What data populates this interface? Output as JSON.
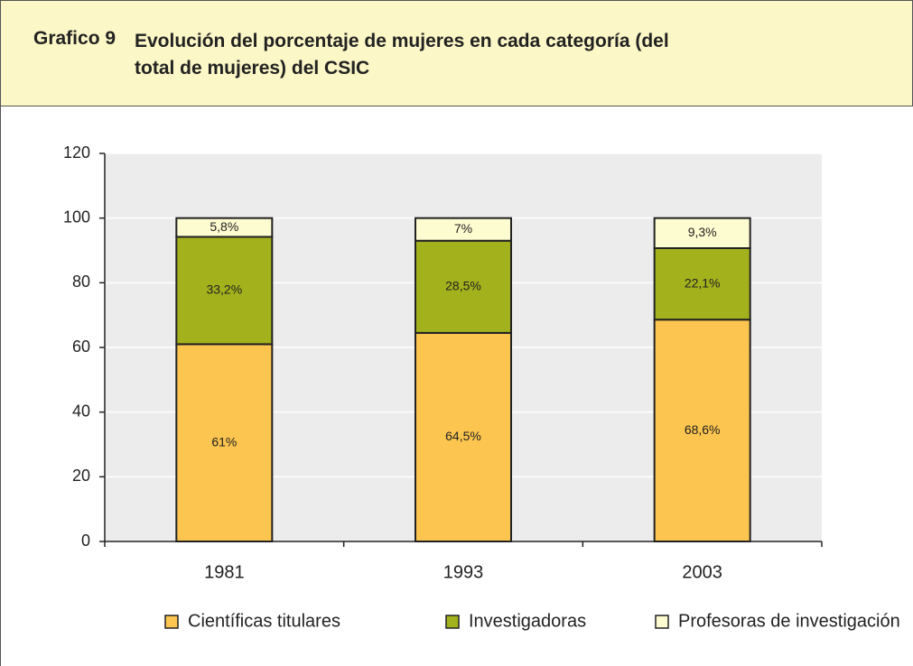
{
  "chart_data": {
    "type": "stacked_bar",
    "title_label": "Grafico 9",
    "title": "Evolución del porcentaje de mujeres en cada categoría (del total de mujeres) del CSIC",
    "categories": [
      "1981",
      "1993",
      "2003"
    ],
    "series": [
      {
        "name": "Científicas titulares",
        "color": "#fcc54f",
        "values": [
          61,
          64.5,
          68.6
        ],
        "value_labels": [
          "61%",
          "64,5%",
          "68,6%"
        ]
      },
      {
        "name": "Investigadoras",
        "color": "#a3b11c",
        "values": [
          33.2,
          28.5,
          22.1
        ],
        "value_labels": [
          "33,2%",
          "28,5%",
          "22,1%"
        ]
      },
      {
        "name": "Profesoras de investigación",
        "color": "#fdfbd0",
        "values": [
          5.8,
          7,
          9.3
        ],
        "value_labels": [
          "5,8%",
          "7%",
          "9,3%"
        ]
      }
    ],
    "ylim": [
      0,
      120
    ],
    "yticks": [
      0,
      20,
      40,
      60,
      80,
      100,
      120
    ],
    "grid": true,
    "legend": "bottom"
  }
}
